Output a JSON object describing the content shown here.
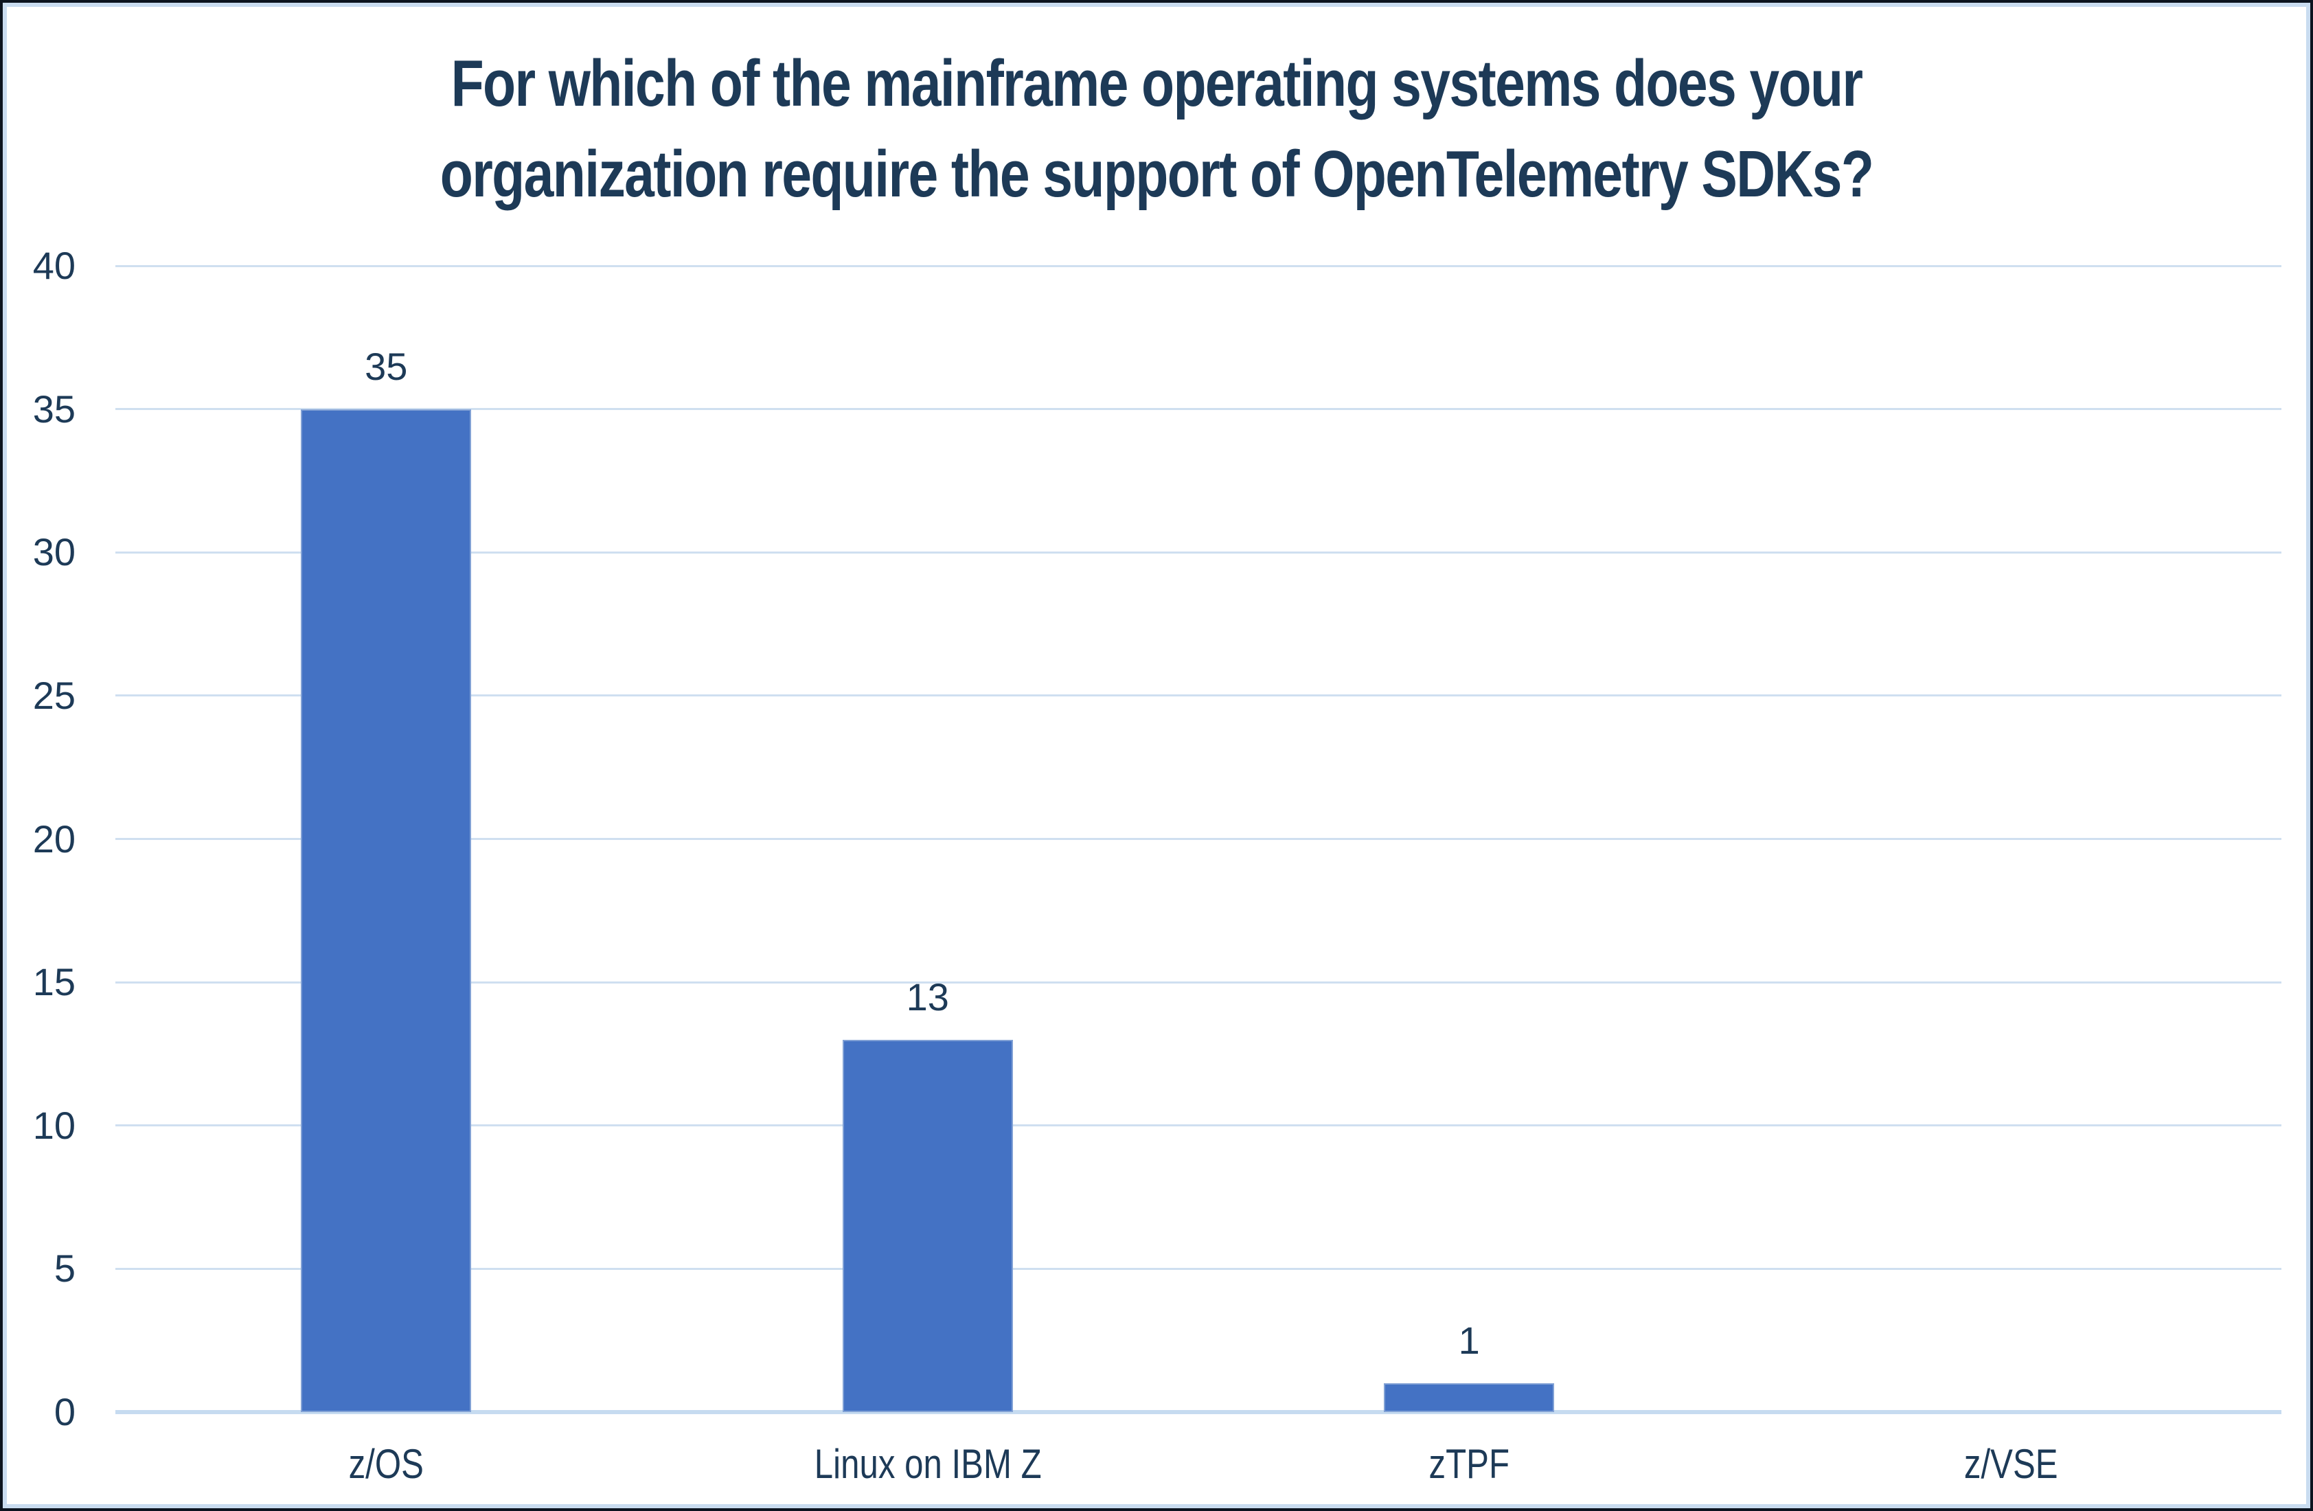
{
  "chart_data": {
    "type": "bar",
    "title": "For which of the mainframe operating systems does your organization require the support of OpenTelemetry SDKs?",
    "title_lines": [
      "For which of the mainframe operating systems does your",
      "organization require the support of OpenTelemetry SDKs?"
    ],
    "categories": [
      "z/OS",
      "Linux on IBM Z",
      "zTPF",
      "z/VSE"
    ],
    "values": [
      35,
      13,
      1,
      0
    ],
    "data_labels": [
      "35",
      "13",
      "1",
      ""
    ],
    "xlabel": "",
    "ylabel": "",
    "ylim": [
      0,
      40
    ],
    "yticks": [
      0,
      5,
      10,
      15,
      20,
      25,
      30,
      35,
      40
    ],
    "grid": "horizontal",
    "legend": "none",
    "colors": {
      "bar": "#4472C4",
      "title_text": "#1D3A57",
      "axis_label_text": "#1D3A57",
      "gridline": "#CFDFF0",
      "axis_line": "#C6DBF0",
      "border_inner": "#C9DCF0",
      "border_outer": "#0C141F",
      "background": "#FFFFFF"
    }
  }
}
